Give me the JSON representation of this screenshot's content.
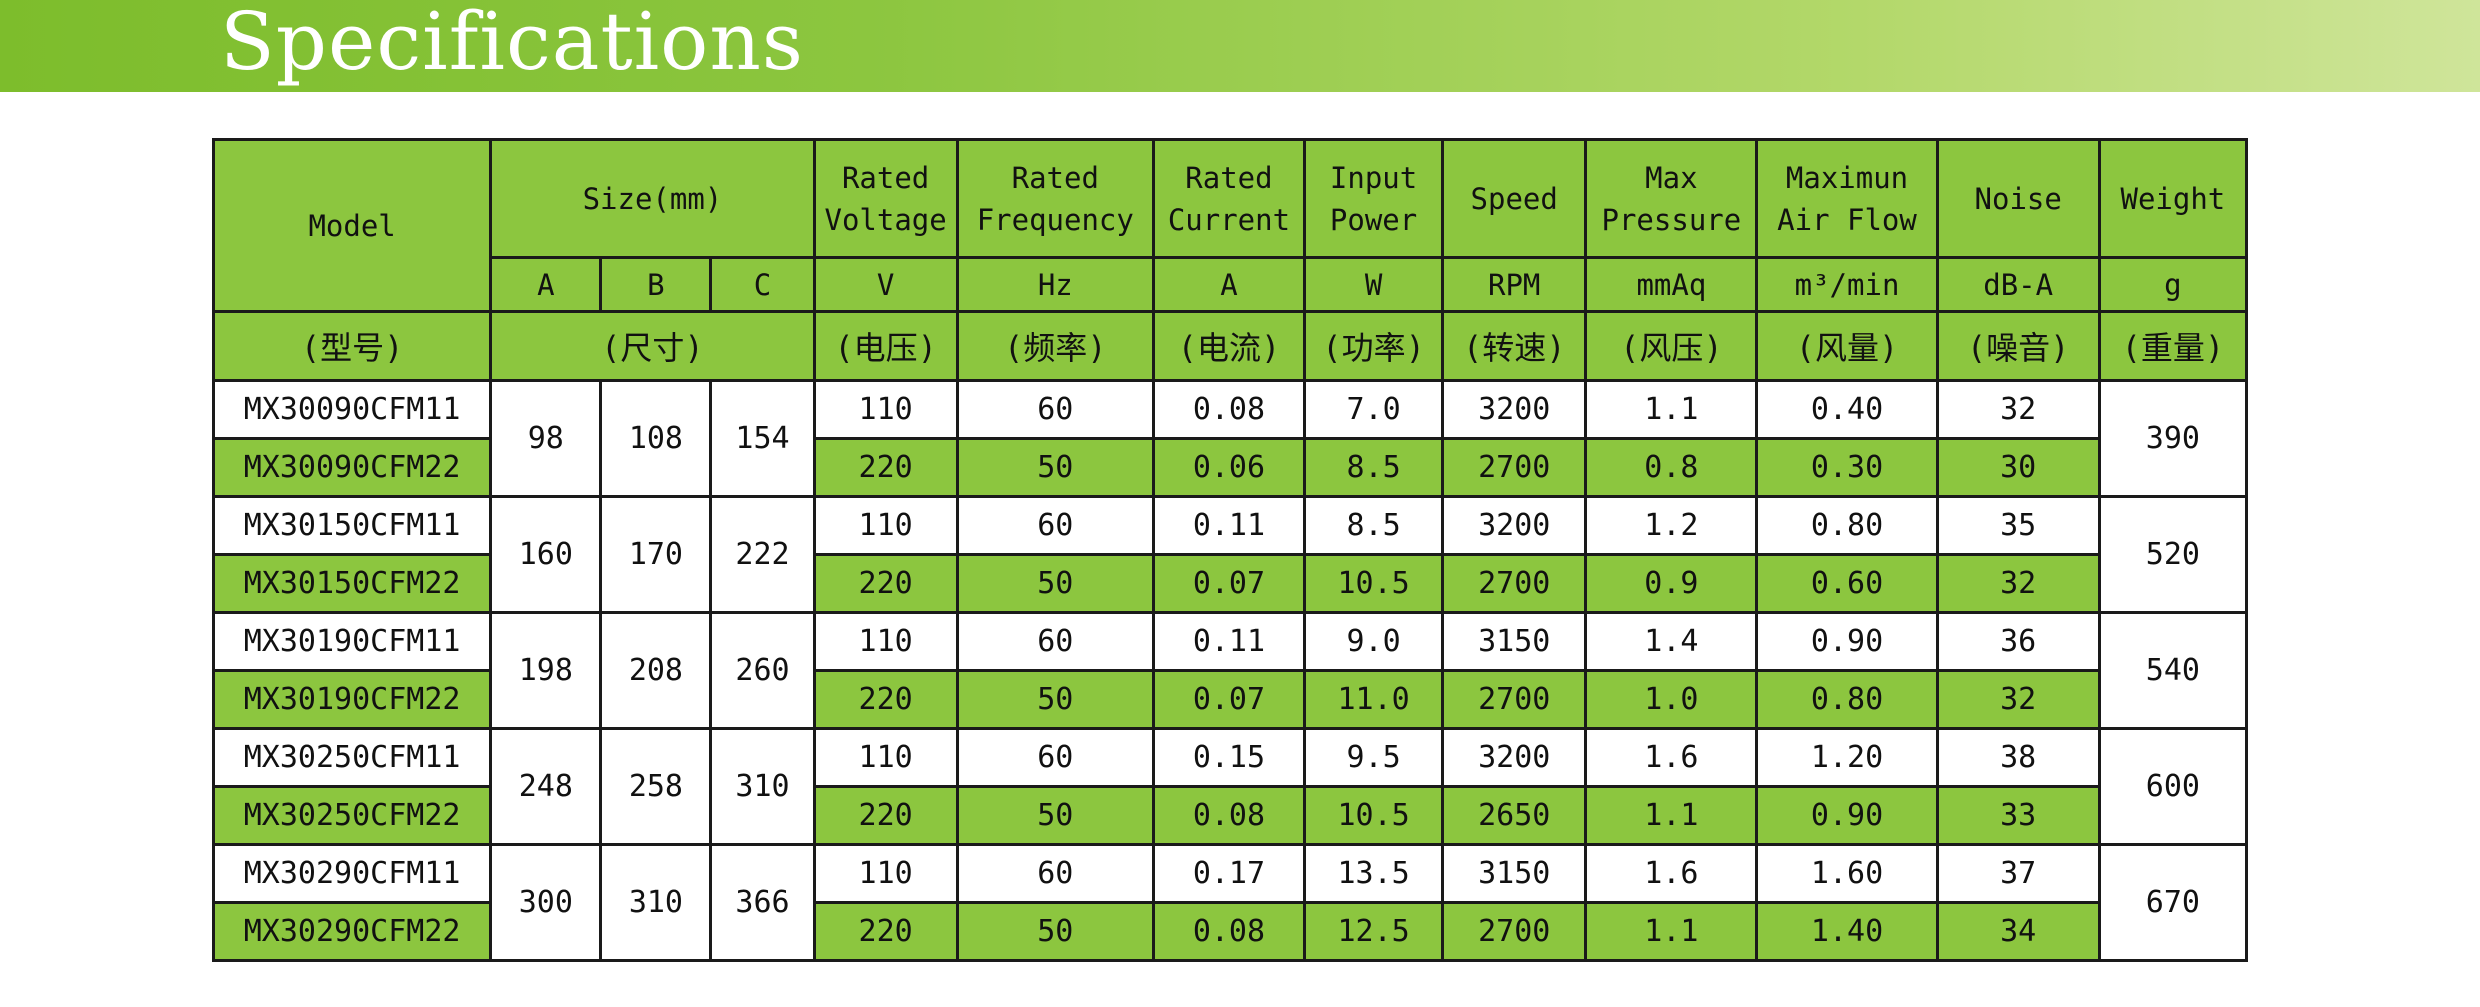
{
  "page": {
    "title": "Specifications"
  },
  "header": {
    "model": "Model",
    "size": "Size(mm)",
    "voltage": "Rated Voltage",
    "frequency": "Rated Frequency",
    "current": "Rated Current",
    "power": "Input Power",
    "speed": "Speed",
    "pressure": "Max Pressure",
    "airflow": "Maximun Air Flow",
    "noise": "Noise",
    "weight": "Weight"
  },
  "units": {
    "a": "A",
    "b": "B",
    "c": "C",
    "voltage": "V",
    "frequency": "Hz",
    "current": "A",
    "power": "W",
    "speed": "RPM",
    "pressure": "mmAq",
    "airflow": "m³/min",
    "noise": "dB-A",
    "weight": "g"
  },
  "cn": {
    "model": "(型号)",
    "size": "(尺寸)",
    "voltage": "(电压)",
    "frequency": "(频率)",
    "current": "(电流)",
    "power": "(功率)",
    "speed": "(转速)",
    "pressure": "(风压)",
    "airflow": "(风量)",
    "noise": "(噪音)",
    "weight": "(重量)"
  },
  "groups": [
    {
      "a": "98",
      "b": "108",
      "c": "154",
      "weight": "390",
      "rows": [
        {
          "model": "MX30090CFM11",
          "voltage": "110",
          "frequency": "60",
          "current": "0.08",
          "power": "7.0",
          "speed": "3200",
          "pressure": "1.1",
          "airflow": "0.40",
          "noise": "32"
        },
        {
          "model": "MX30090CFM22",
          "voltage": "220",
          "frequency": "50",
          "current": "0.06",
          "power": "8.5",
          "speed": "2700",
          "pressure": "0.8",
          "airflow": "0.30",
          "noise": "30"
        }
      ]
    },
    {
      "a": "160",
      "b": "170",
      "c": "222",
      "weight": "520",
      "rows": [
        {
          "model": "MX30150CFM11",
          "voltage": "110",
          "frequency": "60",
          "current": "0.11",
          "power": "8.5",
          "speed": "3200",
          "pressure": "1.2",
          "airflow": "0.80",
          "noise": "35"
        },
        {
          "model": "MX30150CFM22",
          "voltage": "220",
          "frequency": "50",
          "current": "0.07",
          "power": "10.5",
          "speed": "2700",
          "pressure": "0.9",
          "airflow": "0.60",
          "noise": "32"
        }
      ]
    },
    {
      "a": "198",
      "b": "208",
      "c": "260",
      "weight": "540",
      "rows": [
        {
          "model": "MX30190CFM11",
          "voltage": "110",
          "frequency": "60",
          "current": "0.11",
          "power": "9.0",
          "speed": "3150",
          "pressure": "1.4",
          "airflow": "0.90",
          "noise": "36"
        },
        {
          "model": "MX30190CFM22",
          "voltage": "220",
          "frequency": "50",
          "current": "0.07",
          "power": "11.0",
          "speed": "2700",
          "pressure": "1.0",
          "airflow": "0.80",
          "noise": "32"
        }
      ]
    },
    {
      "a": "248",
      "b": "258",
      "c": "310",
      "weight": "600",
      "rows": [
        {
          "model": "MX30250CFM11",
          "voltage": "110",
          "frequency": "60",
          "current": "0.15",
          "power": "9.5",
          "speed": "3200",
          "pressure": "1.6",
          "airflow": "1.20",
          "noise": "38"
        },
        {
          "model": "MX30250CFM22",
          "voltage": "220",
          "frequency": "50",
          "current": "0.08",
          "power": "10.5",
          "speed": "2650",
          "pressure": "1.1",
          "airflow": "0.90",
          "noise": "33"
        }
      ]
    },
    {
      "a": "300",
      "b": "310",
      "c": "366",
      "weight": "670",
      "rows": [
        {
          "model": "MX30290CFM11",
          "voltage": "110",
          "frequency": "60",
          "current": "0.17",
          "power": "13.5",
          "speed": "3150",
          "pressure": "1.6",
          "airflow": "1.60",
          "noise": "37"
        },
        {
          "model": "MX30290CFM22",
          "voltage": "220",
          "frequency": "50",
          "current": "0.08",
          "power": "12.5",
          "speed": "2700",
          "pressure": "1.1",
          "airflow": "1.40",
          "noise": "34"
        }
      ]
    }
  ]
}
